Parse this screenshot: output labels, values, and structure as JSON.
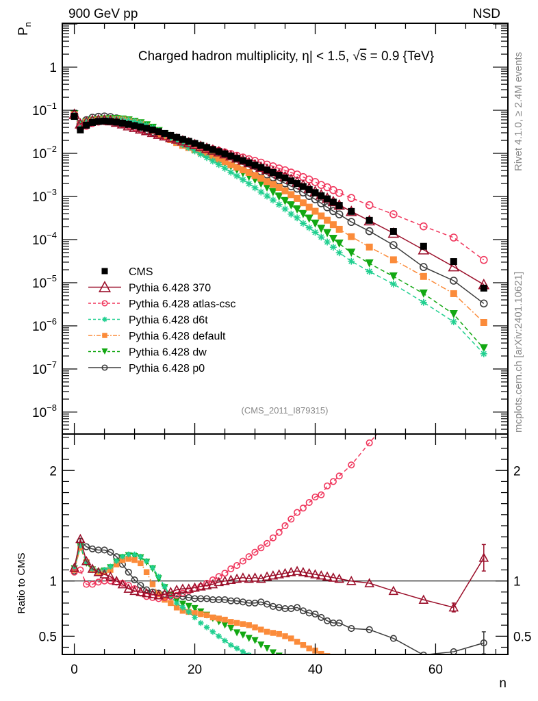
{
  "chart_data": {
    "type": "scatter",
    "header_left": "900 GeV pp",
    "header_right": "NSD",
    "title": "Charged hadron multiplicity, |η| < 1.5, √s = 0.9 {TeV}",
    "title_parts": {
      "pre": "Charged hadron multiplicity, ",
      "eta": "η",
      "mid": "| < 1.5, ",
      "sqrt": "√",
      "s": "s",
      "post": " = 0.9 {TeV}"
    },
    "analysis_id": "(CMS_2011_I879315)",
    "side_label_top": "Rivet 4.1.0, ≥ 2.4M events",
    "side_label_bottom": "mcplots.cern.ch [arXiv:2401.10621]",
    "xlabel": "n",
    "ylabel_top": "P",
    "ylabel_top_sub": "n",
    "ylabel_bottom": "Ratio to CMS",
    "xlim": [
      -2,
      72
    ],
    "ylim_top": [
      3.1e-09,
      10.4
    ],
    "ylim_bottom": [
      0.335,
      2.33
    ],
    "yscale_top": "log",
    "yscale_bottom": "linear",
    "x_ticks": [
      "0",
      "20",
      "40",
      "60"
    ],
    "x_tick_values": [
      0,
      20,
      40,
      60
    ],
    "y_ticks_top": [
      {
        "value": 1,
        "base": "1",
        "exp": ""
      },
      {
        "value": 0.1,
        "base": "10",
        "exp": "−1"
      },
      {
        "value": 0.01,
        "base": "10",
        "exp": "−2"
      },
      {
        "value": 0.001,
        "base": "10",
        "exp": "−3"
      },
      {
        "value": 0.0001,
        "base": "10",
        "exp": "−4"
      },
      {
        "value": 1e-05,
        "base": "10",
        "exp": "−5"
      },
      {
        "value": 1e-06,
        "base": "10",
        "exp": "−6"
      },
      {
        "value": 1e-07,
        "base": "10",
        "exp": "−7"
      },
      {
        "value": 1e-08,
        "base": "10",
        "exp": "−8"
      }
    ],
    "y_ticks_bottom": [
      {
        "value": 0.5,
        "label": "0.5"
      },
      {
        "value": 1,
        "label": "1"
      },
      {
        "value": 2,
        "label": "2"
      }
    ],
    "legend_position": "lower-left",
    "reference_line_ratio": 1,
    "series": [
      {
        "name": "CMS",
        "color": "#000000",
        "marker": "filled-square",
        "line": "none",
        "x": [
          0,
          1,
          2,
          3,
          4,
          5,
          6,
          7,
          8,
          9,
          10,
          11,
          12,
          13,
          14,
          15,
          16,
          17,
          18,
          19,
          20,
          21,
          22,
          23,
          24,
          25,
          26,
          27,
          28,
          29,
          30,
          31,
          32,
          33,
          34,
          35,
          36,
          37,
          38,
          39,
          40,
          41,
          42,
          43,
          44,
          46,
          49,
          53,
          58,
          63,
          68
        ],
        "values": [
          0.072,
          0.035,
          0.045,
          0.052,
          0.055,
          0.056,
          0.055,
          0.053,
          0.05,
          0.047,
          0.044,
          0.041,
          0.038,
          0.035,
          0.032,
          0.029,
          0.026,
          0.0235,
          0.021,
          0.019,
          0.017,
          0.0153,
          0.0137,
          0.0123,
          0.011,
          0.0098,
          0.0087,
          0.0077,
          0.0068,
          0.006,
          0.0053,
          0.0047,
          0.0041,
          0.0036,
          0.0031,
          0.0027,
          0.0023,
          0.002,
          0.0017,
          0.00145,
          0.00123,
          0.00104,
          0.00088,
          0.00074,
          0.00062,
          0.00045,
          0.00028,
          0.000155,
          7e-05,
          3.1e-05,
          7.5e-06
        ]
      },
      {
        "name": "Pythia 6.428 370",
        "color": "#9b0f2a",
        "marker": "open-triangle-up",
        "line": "solid",
        "x": [
          0,
          1,
          2,
          3,
          4,
          5,
          6,
          7,
          8,
          9,
          10,
          11,
          12,
          13,
          14,
          15,
          16,
          17,
          18,
          19,
          20,
          21,
          22,
          23,
          24,
          25,
          26,
          27,
          28,
          29,
          30,
          31,
          32,
          33,
          34,
          35,
          36,
          37,
          38,
          39,
          40,
          41,
          42,
          43,
          44,
          46,
          49,
          53,
          58,
          63,
          68
        ],
        "ratio": [
          1.12,
          1.38,
          1.18,
          1.11,
          1.08,
          1.06,
          1.04,
          1.0,
          0.97,
          0.93,
          0.91,
          0.9,
          0.89,
          0.88,
          0.87,
          0.88,
          0.9,
          0.92,
          0.93,
          0.93,
          0.94,
          0.95,
          0.96,
          0.97,
          0.99,
          1.0,
          1.01,
          1.02,
          1.03,
          1.02,
          1.03,
          1.02,
          1.04,
          1.05,
          1.06,
          1.07,
          1.08,
          1.09,
          1.08,
          1.07,
          1.06,
          1.05,
          1.04,
          1.03,
          1.02,
          1.0,
          0.98,
          0.91,
          0.83,
          0.76,
          1.21
        ],
        "ratio_err": {
          "63": 0.04,
          "68": 0.12
        }
      },
      {
        "name": "Pythia 6.428 atlas-csc",
        "color": "#f0365c",
        "marker": "open-circle",
        "line": "dashed",
        "x": [
          0,
          1,
          2,
          3,
          4,
          5,
          6,
          7,
          8,
          9,
          10,
          11,
          12,
          13,
          14,
          15,
          16,
          17,
          18,
          19,
          20,
          21,
          22,
          23,
          24,
          25,
          26,
          27,
          28,
          29,
          30,
          31,
          32,
          33,
          34,
          35,
          36,
          37,
          38,
          39,
          40,
          41,
          42,
          43,
          44,
          46,
          49,
          53,
          58,
          63,
          68
        ],
        "ratio": [
          1.08,
          1.1,
          0.97,
          0.97,
          0.99,
          1.0,
          1.0,
          0.99,
          0.98,
          0.96,
          0.93,
          0.89,
          0.86,
          0.85,
          0.84,
          0.85,
          0.86,
          0.87,
          0.89,
          0.91,
          0.93,
          0.95,
          0.98,
          1.01,
          1.04,
          1.07,
          1.11,
          1.14,
          1.18,
          1.22,
          1.26,
          1.3,
          1.34,
          1.39,
          1.44,
          1.5,
          1.56,
          1.62,
          1.66,
          1.71,
          1.76,
          1.78,
          1.86,
          1.9,
          1.95,
          2.05,
          2.25,
          2.5,
          2.9,
          3.6,
          4.5
        ]
      },
      {
        "name": "Pythia 6.428 d6t",
        "color": "#1fcf8f",
        "marker": "asterisk",
        "line": "dashed",
        "x": [
          0,
          1,
          2,
          3,
          4,
          5,
          6,
          7,
          8,
          9,
          10,
          11,
          12,
          13,
          14,
          15,
          16,
          17,
          18,
          19,
          20,
          21,
          22,
          23,
          24,
          25,
          26,
          27,
          28,
          29,
          30,
          31,
          32,
          33,
          34,
          35,
          36,
          37,
          38,
          39,
          40,
          41,
          42,
          43,
          44,
          46,
          49,
          53,
          58,
          63,
          68
        ],
        "ratio": [
          1.12,
          1.32,
          1.17,
          1.11,
          1.09,
          1.1,
          1.13,
          1.18,
          1.22,
          1.24,
          1.24,
          1.22,
          1.18,
          1.12,
          1.04,
          0.95,
          0.86,
          0.8,
          0.76,
          0.72,
          0.67,
          0.62,
          0.58,
          0.54,
          0.5,
          0.46,
          0.42,
          0.39,
          0.36,
          0.33,
          0.3,
          0.27,
          0.25,
          0.23,
          0.21,
          0.19,
          0.17,
          0.16,
          0.14,
          0.13,
          0.12,
          0.11,
          0.1,
          0.09,
          0.08,
          0.07,
          0.065,
          0.06,
          0.05,
          0.04,
          0.03
        ],
        "ratio_err": {}
      },
      {
        "name": "Pythia 6.428 default",
        "color": "#fb8b3a",
        "marker": "filled-square",
        "line": "dash-dot",
        "x": [
          0,
          1,
          2,
          3,
          4,
          5,
          6,
          7,
          8,
          9,
          10,
          11,
          12,
          13,
          14,
          15,
          16,
          17,
          18,
          19,
          20,
          21,
          22,
          23,
          24,
          25,
          26,
          27,
          28,
          29,
          30,
          31,
          32,
          33,
          34,
          35,
          36,
          37,
          38,
          39,
          40,
          41,
          42,
          43,
          44,
          46,
          49,
          53,
          58,
          63,
          68
        ],
        "ratio": [
          1.1,
          1.3,
          1.17,
          1.1,
          1.08,
          1.08,
          1.1,
          1.15,
          1.19,
          1.2,
          1.19,
          1.16,
          1.08,
          0.97,
          0.88,
          0.83,
          0.8,
          0.76,
          0.73,
          0.72,
          0.71,
          0.7,
          0.69,
          0.67,
          0.66,
          0.65,
          0.63,
          0.62,
          0.61,
          0.6,
          0.58,
          0.56,
          0.54,
          0.53,
          0.52,
          0.5,
          0.48,
          0.45,
          0.42,
          0.39,
          0.37,
          0.34,
          0.32,
          0.3,
          0.28,
          0.26,
          0.24,
          0.22,
          0.2,
          0.18,
          0.16
        ]
      },
      {
        "name": "Pythia 6.428 dw",
        "color": "#13a813",
        "marker": "filled-triangle-down",
        "line": "dashed",
        "x": [
          0,
          1,
          2,
          3,
          4,
          5,
          6,
          7,
          8,
          9,
          10,
          11,
          12,
          13,
          14,
          15,
          16,
          17,
          18,
          19,
          20,
          21,
          22,
          23,
          24,
          25,
          26,
          27,
          28,
          29,
          30,
          31,
          32,
          33,
          34,
          35,
          36,
          37,
          38,
          39,
          40,
          41,
          42,
          43,
          44,
          46,
          49,
          53,
          58,
          63,
          68
        ],
        "ratio": [
          1.11,
          1.31,
          1.16,
          1.1,
          1.08,
          1.09,
          1.12,
          1.17,
          1.21,
          1.23,
          1.22,
          1.21,
          1.17,
          1.11,
          1.02,
          0.94,
          0.87,
          0.82,
          0.79,
          0.77,
          0.75,
          0.72,
          0.69,
          0.66,
          0.63,
          0.6,
          0.57,
          0.53,
          0.51,
          0.48,
          0.46,
          0.42,
          0.39,
          0.35,
          0.32,
          0.29,
          0.27,
          0.25,
          0.23,
          0.21,
          0.19,
          0.17,
          0.16,
          0.14,
          0.13,
          0.11,
          0.1,
          0.09,
          0.08,
          0.06,
          0.04
        ]
      },
      {
        "name": "Pythia 6.428 p0",
        "color": "#3b3b3b",
        "marker": "open-circle",
        "line": "solid",
        "x": [
          0,
          1,
          2,
          3,
          4,
          5,
          6,
          7,
          8,
          9,
          10,
          11,
          12,
          13,
          14,
          15,
          16,
          17,
          18,
          19,
          20,
          21,
          22,
          23,
          24,
          25,
          26,
          27,
          28,
          29,
          30,
          31,
          32,
          33,
          34,
          35,
          36,
          37,
          38,
          39,
          40,
          41,
          42,
          43,
          44,
          46,
          49,
          53,
          58,
          63,
          68
        ],
        "ratio": [
          1.09,
          1.36,
          1.31,
          1.29,
          1.28,
          1.28,
          1.26,
          1.22,
          1.15,
          1.08,
          1.01,
          0.96,
          0.92,
          0.9,
          0.89,
          0.88,
          0.87,
          0.86,
          0.86,
          0.85,
          0.84,
          0.84,
          0.84,
          0.83,
          0.83,
          0.83,
          0.82,
          0.82,
          0.81,
          0.8,
          0.8,
          0.81,
          0.79,
          0.77,
          0.76,
          0.75,
          0.75,
          0.76,
          0.73,
          0.71,
          0.7,
          0.67,
          0.64,
          0.62,
          0.62,
          0.57,
          0.56,
          0.48,
          0.33,
          0.36,
          0.44
        ],
        "ratio_err": {
          "68": 0.1
        }
      }
    ]
  }
}
